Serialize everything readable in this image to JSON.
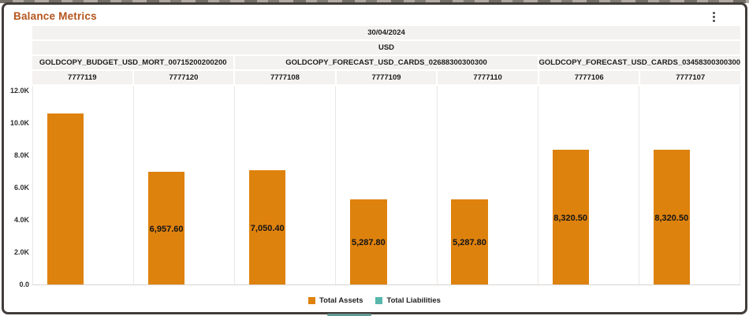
{
  "widget": {
    "title": "Balance Metrics",
    "menu_icon": "kebab-menu"
  },
  "chart_data": {
    "type": "bar",
    "title": "Balance Metrics",
    "headers": {
      "date": "30/04/2024",
      "currency": "USD"
    },
    "groups": [
      {
        "label": "GOLDCOPY_BUDGET_USD_MORT_00715200200200",
        "accounts": [
          "7777119",
          "7777120"
        ]
      },
      {
        "label": "GOLDCOPY_FORECAST_USD_CARDS_02688300300300",
        "accounts": [
          "7777108",
          "7777109",
          "7777110"
        ]
      },
      {
        "label": "GOLDCOPY_FORECAST_USD_CARDS_03458300300300",
        "accounts": [
          "7777106",
          "7777107"
        ]
      }
    ],
    "categories": [
      "7777119",
      "7777120",
      "7777108",
      "7777109",
      "7777110",
      "7777106",
      "7777107"
    ],
    "series": [
      {
        "name": "Total Assets",
        "color": "#DE820E",
        "values": [
          10580,
          6957.6,
          7050.4,
          5287.8,
          5287.8,
          8320.5,
          8320.5
        ],
        "labels": [
          "",
          "6,957.60",
          "7,050.40",
          "5,287.80",
          "5,287.80",
          "8,320.50",
          "8,320.50"
        ]
      },
      {
        "name": "Total Liabilities",
        "color": "#57B7AD",
        "values": [
          0,
          0,
          0,
          0,
          0,
          0,
          0
        ],
        "labels": [
          "",
          "",
          "",
          "",
          "",
          "",
          ""
        ]
      }
    ],
    "y_axis": {
      "min": 0,
      "max": 12000,
      "ticks": [
        {
          "label": "0.0",
          "value": 0
        },
        {
          "label": "2.0K",
          "value": 2000
        },
        {
          "label": "4.0K",
          "value": 4000
        },
        {
          "label": "6.0K",
          "value": 6000
        },
        {
          "label": "8.0K",
          "value": 8000
        },
        {
          "label": "10.0K",
          "value": 10000
        },
        {
          "label": "12.0K",
          "value": 12000
        }
      ]
    },
    "legend": {
      "position": "bottom",
      "items": [
        {
          "label": "Total Assets",
          "color": "#DE820E"
        },
        {
          "label": "Total Liabilities",
          "color": "#57B7AD"
        }
      ]
    },
    "grid": "vertical-column-separators"
  }
}
